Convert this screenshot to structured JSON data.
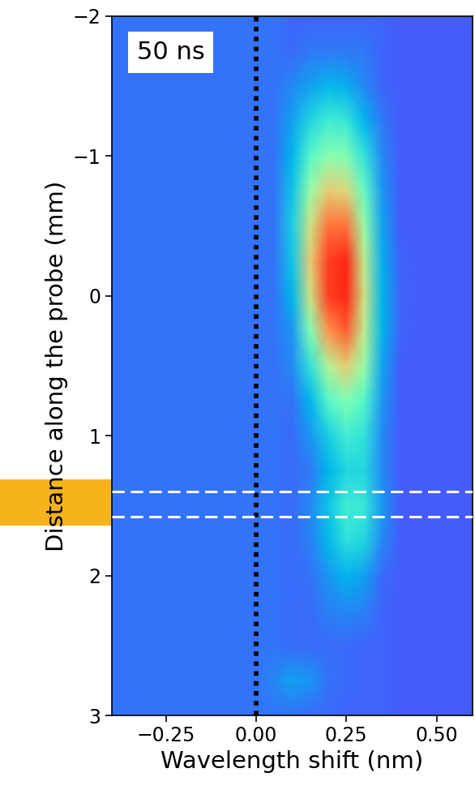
{
  "chart_data": {
    "type": "heatmap",
    "annotation": "50 ns",
    "x_label": "Wavelength shift (nm)",
    "y_label": "Distance along the probe (mm)",
    "xlim": [
      -0.4,
      0.6
    ],
    "ylim": [
      3,
      -2
    ],
    "xticks": [
      {
        "value": -0.25,
        "label": "−0.25"
      },
      {
        "value": 0.0,
        "label": "0.00"
      },
      {
        "value": 0.25,
        "label": "0.25"
      },
      {
        "value": 0.5,
        "label": "0.50"
      }
    ],
    "yticks": [
      {
        "value": -2,
        "label": "−2"
      },
      {
        "value": -1,
        "label": "−1"
      },
      0,
      1,
      2,
      3
    ],
    "x": [
      -0.4,
      -0.35,
      -0.3,
      -0.25,
      -0.2,
      -0.15,
      -0.1,
      -0.05,
      0.0,
      0.05,
      0.1,
      0.15,
      0.2,
      0.25,
      0.3,
      0.35,
      0.4,
      0.45,
      0.5,
      0.55,
      0.6
    ],
    "y": [
      -2,
      -1.75,
      -1.5,
      -1.25,
      -1.0,
      -0.75,
      -0.5,
      -0.25,
      0,
      0.25,
      0.5,
      0.75,
      1.0,
      1.25,
      1.5,
      1.75,
      2.0,
      2.25,
      2.5,
      2.75,
      3.0
    ],
    "color_range": [
      0,
      1
    ],
    "cells": [
      [
        0.15,
        0.15,
        0.15,
        0.15,
        0.15,
        0.15,
        0.15,
        0.15,
        0.15,
        0.15,
        0.13,
        0.13,
        0.13,
        0.13,
        0.13,
        0.13,
        0.12,
        0.12,
        0.12,
        0.12,
        0.12
      ],
      [
        0.15,
        0.15,
        0.15,
        0.15,
        0.15,
        0.15,
        0.15,
        0.15,
        0.15,
        0.15,
        0.14,
        0.16,
        0.16,
        0.16,
        0.16,
        0.13,
        0.12,
        0.12,
        0.12,
        0.12,
        0.12
      ],
      [
        0.15,
        0.15,
        0.15,
        0.15,
        0.15,
        0.15,
        0.15,
        0.15,
        0.15,
        0.15,
        0.18,
        0.22,
        0.26,
        0.24,
        0.18,
        0.13,
        0.12,
        0.12,
        0.12,
        0.12,
        0.12
      ],
      [
        0.15,
        0.15,
        0.15,
        0.15,
        0.15,
        0.15,
        0.15,
        0.15,
        0.15,
        0.15,
        0.22,
        0.32,
        0.38,
        0.36,
        0.25,
        0.16,
        0.12,
        0.12,
        0.12,
        0.12,
        0.12
      ],
      [
        0.15,
        0.15,
        0.15,
        0.15,
        0.15,
        0.15,
        0.15,
        0.15,
        0.15,
        0.15,
        0.25,
        0.42,
        0.52,
        0.5,
        0.35,
        0.18,
        0.12,
        0.12,
        0.12,
        0.12,
        0.12
      ],
      [
        0.15,
        0.15,
        0.15,
        0.15,
        0.15,
        0.15,
        0.15,
        0.15,
        0.15,
        0.15,
        0.28,
        0.55,
        0.7,
        0.68,
        0.45,
        0.2,
        0.12,
        0.12,
        0.12,
        0.12,
        0.12
      ],
      [
        0.15,
        0.15,
        0.15,
        0.15,
        0.15,
        0.15,
        0.15,
        0.15,
        0.15,
        0.15,
        0.3,
        0.65,
        0.85,
        0.85,
        0.55,
        0.22,
        0.12,
        0.12,
        0.12,
        0.12,
        0.12
      ],
      [
        0.15,
        0.15,
        0.15,
        0.15,
        0.15,
        0.15,
        0.15,
        0.15,
        0.15,
        0.15,
        0.28,
        0.7,
        0.92,
        0.95,
        0.62,
        0.24,
        0.13,
        0.12,
        0.12,
        0.12,
        0.12
      ],
      [
        0.15,
        0.15,
        0.15,
        0.15,
        0.15,
        0.15,
        0.15,
        0.15,
        0.15,
        0.15,
        0.25,
        0.65,
        0.92,
        0.95,
        0.65,
        0.25,
        0.13,
        0.12,
        0.12,
        0.12,
        0.12
      ],
      [
        0.15,
        0.15,
        0.15,
        0.15,
        0.15,
        0.15,
        0.15,
        0.15,
        0.15,
        0.15,
        0.2,
        0.5,
        0.8,
        0.88,
        0.62,
        0.25,
        0.13,
        0.12,
        0.12,
        0.12,
        0.12
      ],
      [
        0.15,
        0.15,
        0.15,
        0.15,
        0.15,
        0.15,
        0.15,
        0.15,
        0.15,
        0.15,
        0.18,
        0.35,
        0.6,
        0.7,
        0.55,
        0.22,
        0.12,
        0.12,
        0.12,
        0.12,
        0.12
      ],
      [
        0.15,
        0.15,
        0.15,
        0.15,
        0.15,
        0.15,
        0.15,
        0.15,
        0.15,
        0.15,
        0.15,
        0.25,
        0.42,
        0.5,
        0.42,
        0.2,
        0.12,
        0.12,
        0.12,
        0.12,
        0.12
      ],
      [
        0.15,
        0.15,
        0.15,
        0.15,
        0.15,
        0.15,
        0.15,
        0.15,
        0.15,
        0.15,
        0.14,
        0.2,
        0.3,
        0.38,
        0.35,
        0.18,
        0.12,
        0.12,
        0.12,
        0.12,
        0.12
      ],
      [
        0.15,
        0.15,
        0.15,
        0.15,
        0.15,
        0.15,
        0.15,
        0.15,
        0.15,
        0.15,
        0.14,
        0.16,
        0.25,
        0.32,
        0.32,
        0.18,
        0.12,
        0.12,
        0.12,
        0.12,
        0.12
      ],
      [
        0.15,
        0.15,
        0.15,
        0.15,
        0.15,
        0.15,
        0.15,
        0.15,
        0.15,
        0.15,
        0.14,
        0.18,
        0.28,
        0.38,
        0.36,
        0.2,
        0.12,
        0.12,
        0.12,
        0.12,
        0.12
      ],
      [
        0.15,
        0.15,
        0.15,
        0.15,
        0.15,
        0.15,
        0.15,
        0.15,
        0.15,
        0.15,
        0.14,
        0.17,
        0.26,
        0.34,
        0.32,
        0.18,
        0.12,
        0.12,
        0.12,
        0.12,
        0.12
      ],
      [
        0.15,
        0.15,
        0.15,
        0.15,
        0.15,
        0.15,
        0.15,
        0.15,
        0.15,
        0.15,
        0.14,
        0.15,
        0.2,
        0.25,
        0.22,
        0.14,
        0.12,
        0.12,
        0.12,
        0.12,
        0.12
      ],
      [
        0.15,
        0.15,
        0.15,
        0.15,
        0.15,
        0.15,
        0.15,
        0.15,
        0.15,
        0.15,
        0.14,
        0.14,
        0.17,
        0.18,
        0.17,
        0.13,
        0.12,
        0.12,
        0.12,
        0.12,
        0.12
      ],
      [
        0.15,
        0.15,
        0.15,
        0.15,
        0.15,
        0.15,
        0.15,
        0.15,
        0.15,
        0.15,
        0.14,
        0.14,
        0.14,
        0.14,
        0.13,
        0.13,
        0.12,
        0.12,
        0.12,
        0.12,
        0.12
      ],
      [
        0.15,
        0.15,
        0.15,
        0.15,
        0.15,
        0.15,
        0.15,
        0.15,
        0.15,
        0.18,
        0.22,
        0.2,
        0.15,
        0.14,
        0.13,
        0.13,
        0.12,
        0.12,
        0.12,
        0.12,
        0.12
      ],
      [
        0.15,
        0.15,
        0.15,
        0.15,
        0.15,
        0.15,
        0.15,
        0.15,
        0.15,
        0.15,
        0.15,
        0.14,
        0.14,
        0.13,
        0.13,
        0.13,
        0.12,
        0.12,
        0.12,
        0.12,
        0.12
      ]
    ],
    "vertical_line": 0.0,
    "horizontal_lines": [
      1.4,
      1.58
    ],
    "band": [
      1.31,
      1.64
    ],
    "band_color": "#f6b31c"
  }
}
